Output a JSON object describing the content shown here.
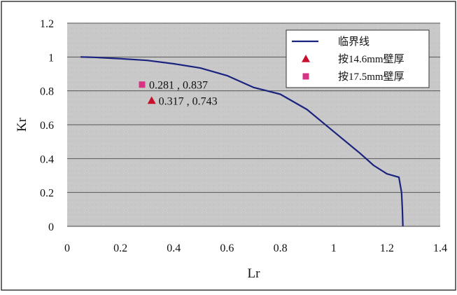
{
  "chart_data": {
    "type": "line",
    "xlabel": "Lr",
    "ylabel": "Kr",
    "xlim": [
      0,
      1.4
    ],
    "ylim": [
      0,
      1.2
    ],
    "xticks": [
      "0",
      "0.2",
      "0.4",
      "0.6",
      "0.8",
      "1",
      "1.2",
      "1.4"
    ],
    "yticks": [
      "0",
      "0.2",
      "0.4",
      "0.6",
      "0.8",
      "1",
      "1.2"
    ],
    "grid": "horizontal",
    "legend_position": "top-right",
    "series": [
      {
        "name": "临界线",
        "kind": "line",
        "color": "#1a237e",
        "x": [
          0.05,
          0.1,
          0.2,
          0.3,
          0.4,
          0.5,
          0.6,
          0.7,
          0.8,
          0.9,
          1.0,
          1.1,
          1.15,
          1.2,
          1.245,
          1.255,
          1.258,
          1.26
        ],
        "y": [
          1.0,
          0.998,
          0.99,
          0.98,
          0.96,
          0.935,
          0.89,
          0.82,
          0.78,
          0.69,
          0.56,
          0.43,
          0.36,
          0.31,
          0.29,
          0.2,
          0.1,
          0.0
        ]
      },
      {
        "name": "按14.6mm壁厚",
        "kind": "point",
        "marker": "triangle",
        "color": "#c8102e",
        "x": [
          0.317
        ],
        "y": [
          0.743
        ],
        "label": "0.317 , 0.743"
      },
      {
        "name": "按17.5mm壁厚",
        "kind": "point",
        "marker": "square",
        "color": "#d63384",
        "x": [
          0.281
        ],
        "y": [
          0.837
        ],
        "label": "0.281 , 0.837"
      }
    ]
  }
}
